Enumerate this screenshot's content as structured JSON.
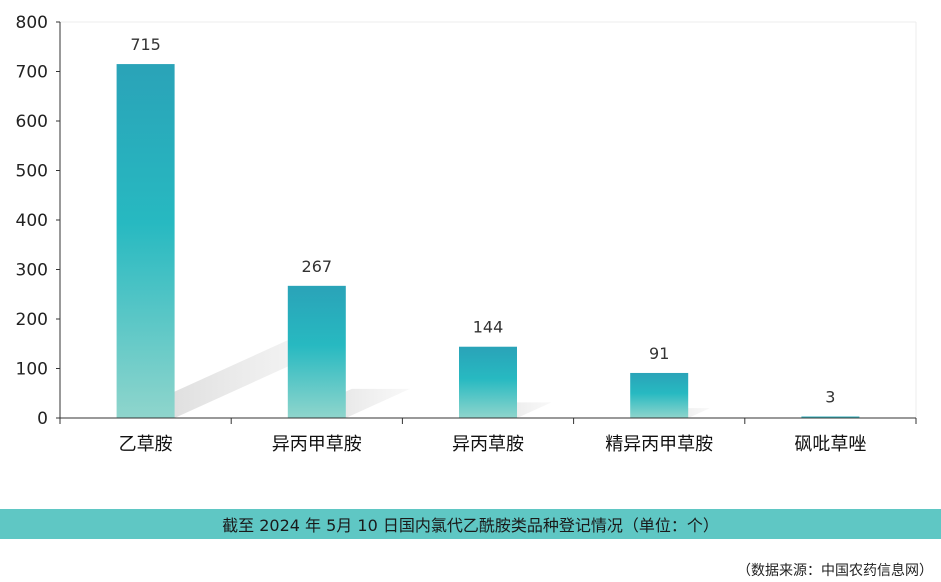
{
  "chart_data": {
    "type": "bar",
    "categories": [
      "乙草胺",
      "异丙甲草胺",
      "异丙草胺",
      "精异丙甲草胺",
      "砜吡草唑"
    ],
    "values": [
      715,
      267,
      144,
      91,
      3
    ],
    "data_labels": [
      "715",
      "267",
      "144",
      "91",
      "3"
    ],
    "ylim": [
      0,
      800
    ],
    "yticks": [
      0,
      100,
      200,
      300,
      400,
      500,
      600,
      700,
      800
    ],
    "ytick_labels": [
      "0",
      "100",
      "200",
      "300",
      "400",
      "500",
      "600",
      "700",
      "800"
    ],
    "grid": false,
    "legend": "none",
    "colors": {
      "bar_top": "#2aa3b8",
      "bar_mid": "#27b9c1",
      "bar_bottom": "#8fd5cc",
      "shadow": "#d9d9d9"
    }
  },
  "caption": "截至 2024 年 5月 10 日国内氯代乙酰胺类品种登记情况（单位：个）",
  "source": "（数据来源：中国农药信息网）"
}
